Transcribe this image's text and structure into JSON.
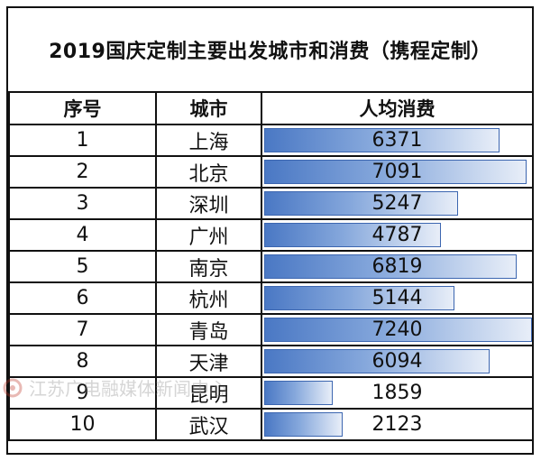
{
  "chart_data": {
    "type": "table",
    "title": "2019国庆定制主要出发城市和消费（携程定制）",
    "columns": [
      "序号",
      "城市",
      "人均消费"
    ],
    "rows": [
      {
        "idx": "1",
        "city": "上海",
        "spend": "6371",
        "value": 6371
      },
      {
        "idx": "2",
        "city": "北京",
        "spend": "7091",
        "value": 7091
      },
      {
        "idx": "3",
        "city": "深圳",
        "spend": "5247",
        "value": 5247
      },
      {
        "idx": "4",
        "city": "广州",
        "spend": "4787",
        "value": 4787
      },
      {
        "idx": "5",
        "city": "南京",
        "spend": "6819",
        "value": 6819
      },
      {
        "idx": "6",
        "city": "杭州",
        "spend": "5144",
        "value": 5144
      },
      {
        "idx": "7",
        "city": "青岛",
        "spend": "7240",
        "value": 7240
      },
      {
        "idx": "8",
        "city": "天津",
        "spend": "6094",
        "value": 6094
      },
      {
        "idx": "9",
        "city": "昆明",
        "spend": "1859",
        "value": 1859
      },
      {
        "idx": "10",
        "city": "武汉",
        "spend": "2123",
        "value": 2123
      }
    ],
    "bar_max": 7240,
    "bar_color": "#4a78c4"
  },
  "watermark": "江苏广电融媒体新闻中心",
  "watermark_icon": "broadcast-logo-icon"
}
